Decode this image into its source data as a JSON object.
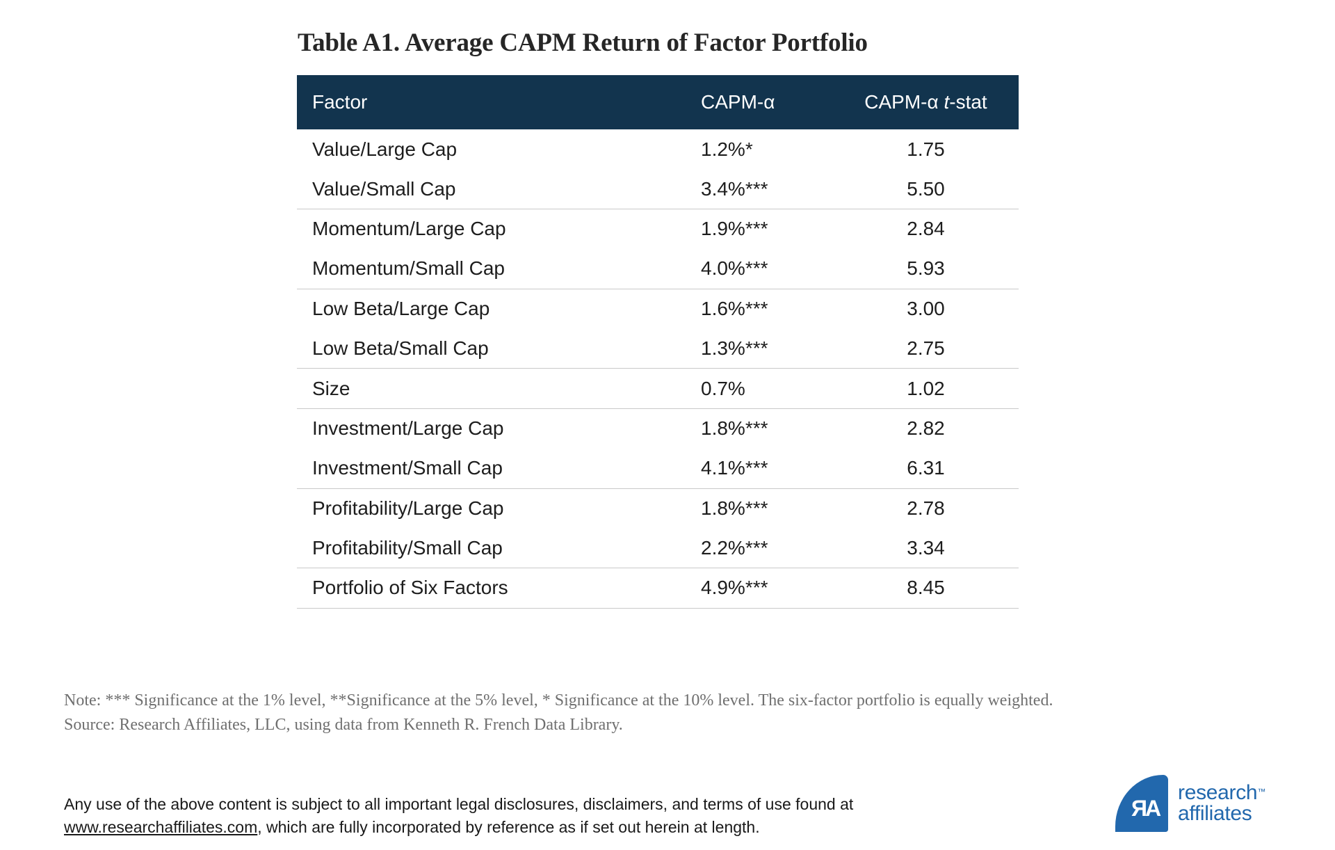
{
  "title": "Table A1. Average CAPM Return of Factor Portfolio",
  "table": {
    "header": {
      "factor": "Factor",
      "alpha": "CAPM-α",
      "tstat_prefix": "CAPM-α ",
      "tstat_italic": "t",
      "tstat_suffix": "-stat",
      "tstat_full": "CAPM-α t-stat"
    },
    "rows": [
      {
        "factor": "Value/Large Cap",
        "alpha": "1.2%*",
        "tstat": "1.75",
        "divider": false
      },
      {
        "factor": "Value/Small Cap",
        "alpha": "3.4%***",
        "tstat": "5.50",
        "divider": true
      },
      {
        "factor": "Momentum/Large Cap",
        "alpha": "1.9%***",
        "tstat": "2.84",
        "divider": false
      },
      {
        "factor": "Momentum/Small Cap",
        "alpha": "4.0%***",
        "tstat": "5.93",
        "divider": true
      },
      {
        "factor": "Low Beta/Large Cap",
        "alpha": "1.6%***",
        "tstat": "3.00",
        "divider": false
      },
      {
        "factor": "Low Beta/Small Cap",
        "alpha": "1.3%***",
        "tstat": "2.75",
        "divider": true
      },
      {
        "factor": "Size",
        "alpha": "0.7%",
        "tstat": "1.02",
        "divider": true
      },
      {
        "factor": "Investment/Large Cap",
        "alpha": "1.8%***",
        "tstat": "2.82",
        "divider": false
      },
      {
        "factor": "Investment/Small Cap",
        "alpha": "4.1%***",
        "tstat": "6.31",
        "divider": true
      },
      {
        "factor": "Profitability/Large Cap",
        "alpha": "1.8%***",
        "tstat": "2.78",
        "divider": false
      },
      {
        "factor": "Profitability/Small Cap",
        "alpha": "2.2%***",
        "tstat": "3.34",
        "divider": true
      },
      {
        "factor": "Portfolio of Six Factors",
        "alpha": "4.9%***",
        "tstat": "8.45",
        "divider": true
      }
    ]
  },
  "note": "Note: *** Significance at the 1% level, **Significance at the 5% level, * Significance at the 10% level. The six-factor portfolio is equally weighted.",
  "source": "Source: Research Affiliates, LLC, using data from Kenneth R. French Data Library.",
  "disclaimer": {
    "line1": "Any use of the above content is subject to all important legal disclosures, disclaimers, and terms of use found at",
    "link": "www.researchaffiliates.com",
    "line2": ", which are fully incorporated by reference as if set out herein at length."
  },
  "logo": {
    "monogram": "ЯA",
    "line1": "research",
    "line2": "affiliates",
    "trademark": "™"
  },
  "colors": {
    "header_bg": "#12344E",
    "divider": "#C9C9C9",
    "logo_blue": "#2268AD",
    "note_gray": "#6F6F6F",
    "body_text": "#1D1D1D"
  },
  "chart_data": {
    "type": "table",
    "title": "Table A1. Average CAPM Return of Factor Portfolio",
    "columns": [
      "Factor",
      "CAPM-α",
      "CAPM-α t-stat"
    ],
    "rows": [
      [
        "Value/Large Cap",
        "1.2%*",
        "1.75"
      ],
      [
        "Value/Small Cap",
        "3.4%***",
        "5.50"
      ],
      [
        "Momentum/Large Cap",
        "1.9%***",
        "2.84"
      ],
      [
        "Momentum/Small Cap",
        "4.0%***",
        "5.93"
      ],
      [
        "Low Beta/Large Cap",
        "1.6%***",
        "3.00"
      ],
      [
        "Low Beta/Small Cap",
        "1.3%***",
        "2.75"
      ],
      [
        "Size",
        "0.7%",
        "1.02"
      ],
      [
        "Investment/Large Cap",
        "1.8%***",
        "2.82"
      ],
      [
        "Investment/Small Cap",
        "4.1%***",
        "6.31"
      ],
      [
        "Profitability/Large Cap",
        "1.8%***",
        "2.78"
      ],
      [
        "Profitability/Small Cap",
        "2.2%***",
        "3.34"
      ],
      [
        "Portfolio of Six Factors",
        "4.9%***",
        "8.45"
      ]
    ]
  }
}
